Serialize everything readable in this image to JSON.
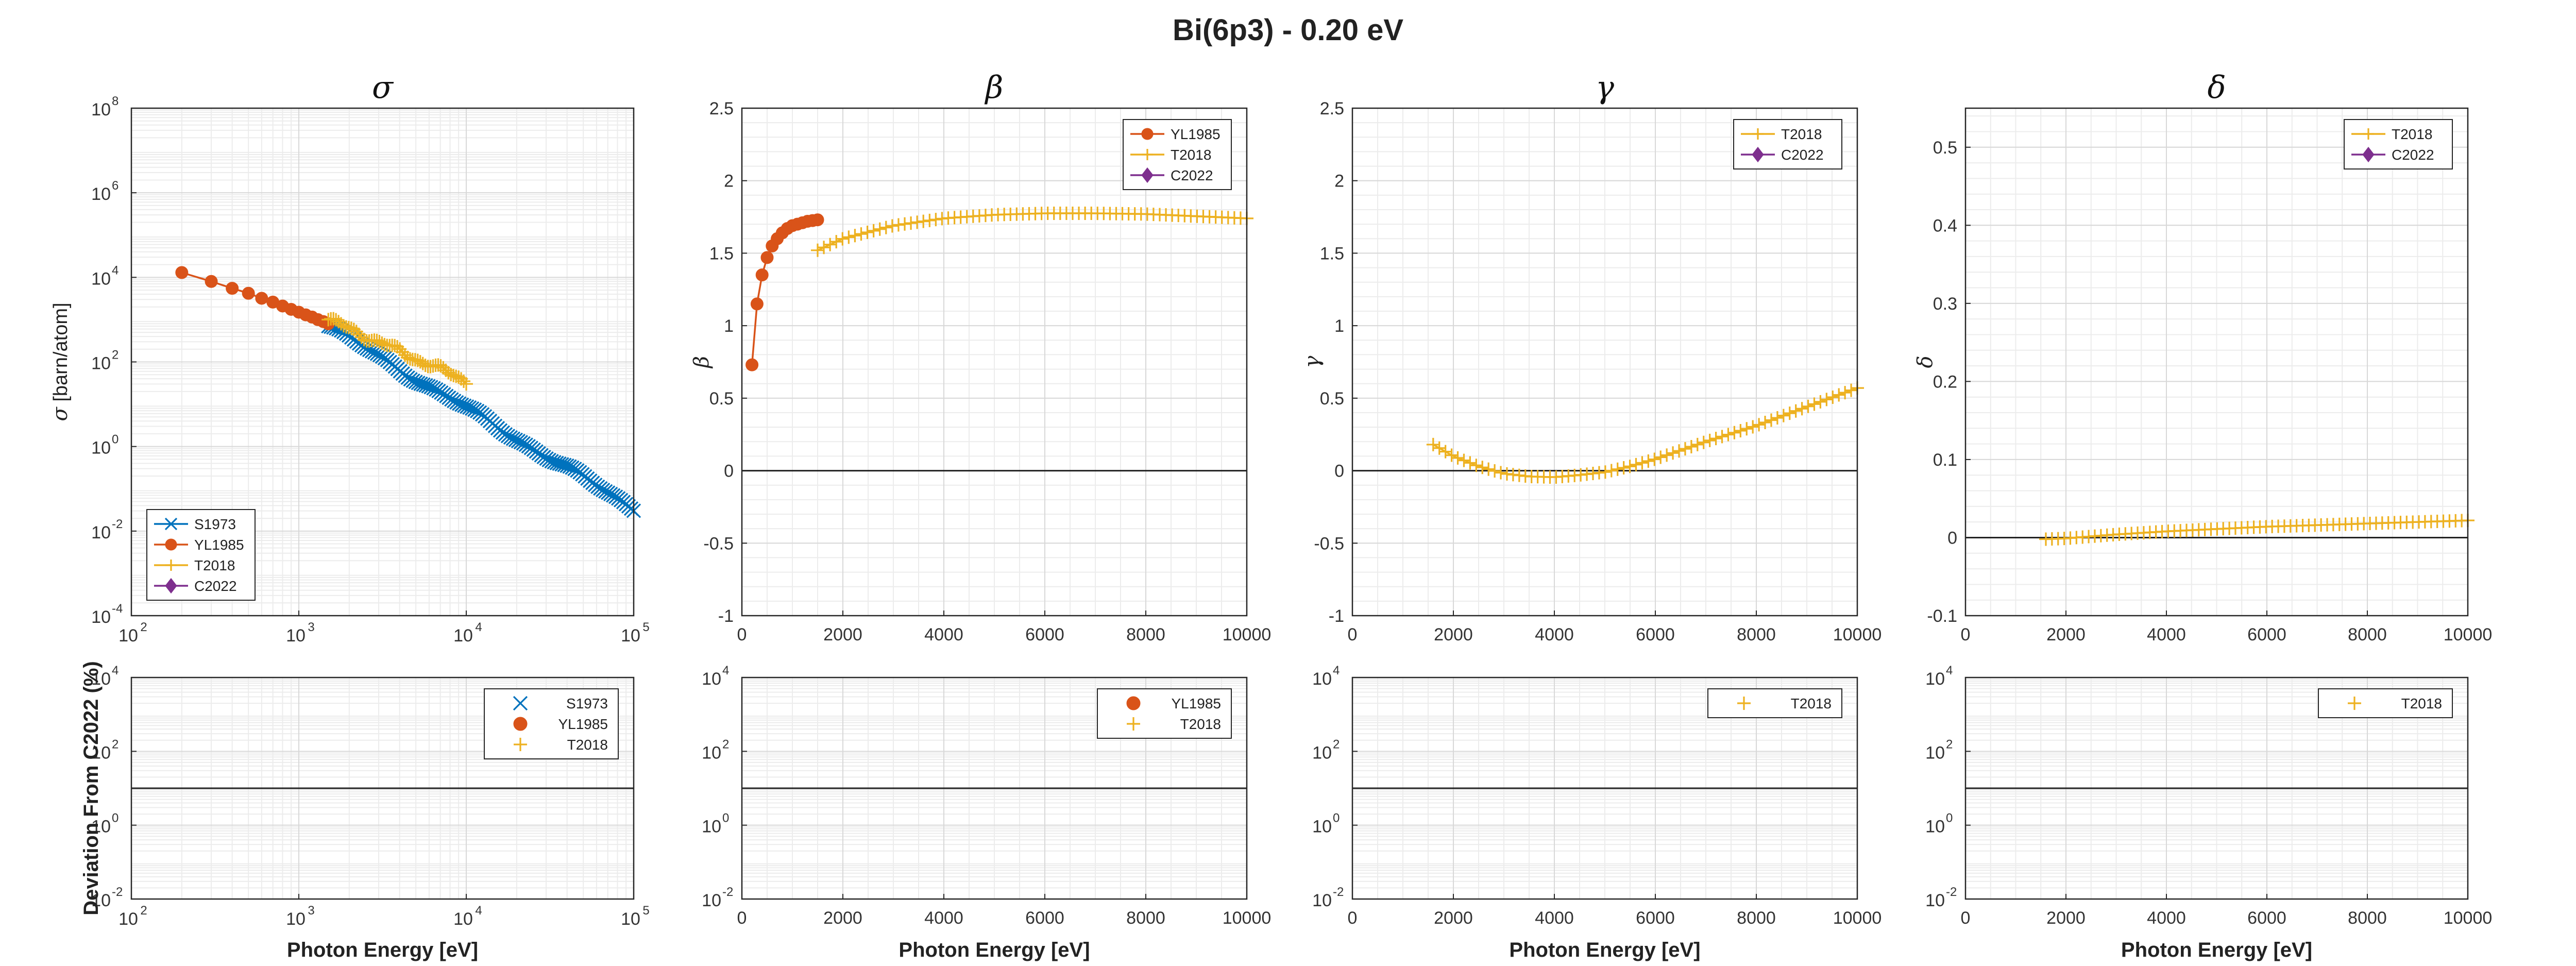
{
  "figure_title": "Bi(6p3) - 0.20 eV",
  "colors": {
    "S1973": "#0072BD",
    "YL1985": "#D95319",
    "T2018": "#EDB120",
    "C2022": "#7E2F8E"
  },
  "chart_data": [
    {
      "id": "sigma",
      "type": "line",
      "title": "σ",
      "ylabel_symbol": "σ",
      "ylabel_rest": " [barn/atom]",
      "xscale": "log",
      "yscale": "log",
      "xlim": [
        100,
        100000
      ],
      "ylim": [
        0.0001,
        100000000
      ],
      "xticks": [
        100,
        1000,
        10000,
        100000
      ],
      "yticks": [
        0.0001,
        0.01,
        1,
        100,
        10000,
        1000000,
        100000000
      ],
      "grid": true,
      "legend": "bottom-left",
      "legend_entries": [
        "S1973",
        "YL1985",
        "T2018",
        "C2022"
      ],
      "series": [
        {
          "name": "S1973",
          "marker": "x",
          "line": true,
          "x_range": [
            1500,
            100000
          ],
          "y_range": [
            700,
            0.035
          ]
        },
        {
          "name": "YL1985",
          "marker": "circle",
          "line": true,
          "x": [
            200,
            300,
            400,
            500,
            600,
            700,
            800,
            900,
            1000,
            1100,
            1200,
            1300,
            1400,
            1500
          ],
          "y": [
            13000,
            8000,
            5500,
            4200,
            3200,
            2600,
            2100,
            1750,
            1500,
            1300,
            1150,
            1000,
            900,
            800
          ]
        },
        {
          "name": "T2018",
          "marker": "plus",
          "line": true,
          "x_range": [
            1500,
            10000
          ],
          "y_range": [
            1000,
            35
          ]
        },
        {
          "name": "C2022",
          "marker": "diamond",
          "line": true,
          "x": [],
          "y": []
        }
      ]
    },
    {
      "id": "beta",
      "type": "line",
      "title": "β",
      "ylabel_symbol": "β",
      "xscale": "linear",
      "yscale": "linear",
      "xlim": [
        0,
        10000
      ],
      "ylim": [
        -1,
        2.5
      ],
      "xticks": [
        0,
        2000,
        4000,
        6000,
        8000,
        10000
      ],
      "yticks": [
        -1,
        -0.5,
        0,
        0.5,
        1,
        1.5,
        2,
        2.5
      ],
      "grid": true,
      "legend": "top-right",
      "legend_entries": [
        "YL1985",
        "T2018",
        "C2022"
      ],
      "series": [
        {
          "name": "YL1985",
          "marker": "circle",
          "line": true,
          "x": [
            200,
            300,
            400,
            500,
            600,
            700,
            800,
            900,
            1000,
            1100,
            1200,
            1300,
            1400,
            1500
          ],
          "y": [
            0.73,
            1.15,
            1.35,
            1.47,
            1.55,
            1.6,
            1.64,
            1.67,
            1.69,
            1.7,
            1.71,
            1.72,
            1.725,
            1.73
          ]
        },
        {
          "name": "T2018",
          "marker": "plus",
          "line": true,
          "x": [
            1500,
            2000,
            3000,
            4000,
            5000,
            6000,
            7000,
            8000,
            9000,
            10000
          ],
          "y": [
            1.52,
            1.6,
            1.69,
            1.74,
            1.765,
            1.775,
            1.775,
            1.77,
            1.755,
            1.74
          ]
        },
        {
          "name": "C2022",
          "marker": "diamond",
          "line": true,
          "x": [],
          "y": []
        }
      ]
    },
    {
      "id": "gamma",
      "type": "line",
      "title": "γ",
      "ylabel_symbol": "γ",
      "xscale": "linear",
      "yscale": "linear",
      "xlim": [
        0,
        10000
      ],
      "ylim": [
        -1,
        2.5
      ],
      "xticks": [
        0,
        2000,
        4000,
        6000,
        8000,
        10000
      ],
      "yticks": [
        -1,
        -0.5,
        0,
        0.5,
        1,
        1.5,
        2,
        2.5
      ],
      "grid": true,
      "legend": "top-right",
      "legend_entries": [
        "T2018",
        "C2022"
      ],
      "series": [
        {
          "name": "T2018",
          "marker": "plus",
          "line": true,
          "x": [
            1600,
            2000,
            2500,
            3000,
            3500,
            4000,
            4500,
            5000,
            5500,
            6000,
            7000,
            8000,
            9000,
            10000
          ],
          "y": [
            0.18,
            0.1,
            0.03,
            -0.02,
            -0.04,
            -0.045,
            -0.03,
            -0.01,
            0.03,
            0.08,
            0.2,
            0.31,
            0.44,
            0.57
          ]
        },
        {
          "name": "C2022",
          "marker": "diamond",
          "line": true,
          "x": [],
          "y": []
        }
      ]
    },
    {
      "id": "delta",
      "type": "line",
      "title": "δ",
      "ylabel_symbol": "δ",
      "xscale": "linear",
      "yscale": "linear",
      "xlim": [
        0,
        10000
      ],
      "ylim": [
        -0.1,
        0.55
      ],
      "xticks": [
        0,
        2000,
        4000,
        6000,
        8000,
        10000
      ],
      "yticks": [
        -0.1,
        0,
        0.1,
        0.2,
        0.3,
        0.4,
        0.5
      ],
      "grid": true,
      "legend": "top-right",
      "legend_entries": [
        "T2018",
        "C2022"
      ],
      "series": [
        {
          "name": "T2018",
          "marker": "plus",
          "line": true,
          "x": [
            1600,
            2000,
            3000,
            4000,
            5000,
            6000,
            7000,
            8000,
            9000,
            10000
          ],
          "y": [
            -0.002,
            -0.001,
            0.004,
            0.008,
            0.011,
            0.014,
            0.016,
            0.018,
            0.02,
            0.022
          ]
        },
        {
          "name": "C2022",
          "marker": "diamond",
          "line": true,
          "x": [],
          "y": []
        }
      ]
    },
    {
      "id": "dev_sigma",
      "type": "scatter",
      "ylabel": "Deviation From C2022 (%)",
      "xlabel": "Photon Energy [eV]",
      "xscale": "log",
      "yscale": "log",
      "xlim": [
        100,
        100000
      ],
      "ylim": [
        0.01,
        10000
      ],
      "xticks": [
        100,
        1000,
        10000,
        100000
      ],
      "yticks": [
        0.01,
        1,
        100,
        10000
      ],
      "reference_line": 10,
      "grid": true,
      "legend": "top-right",
      "legend_entries": [
        "S1973",
        "YL1985",
        "T2018"
      ],
      "series": [
        {
          "name": "S1973",
          "marker": "x",
          "x": [],
          "y": []
        },
        {
          "name": "YL1985",
          "marker": "circle",
          "x": [],
          "y": []
        },
        {
          "name": "T2018",
          "marker": "plus",
          "x": [],
          "y": []
        }
      ]
    },
    {
      "id": "dev_beta",
      "type": "scatter",
      "xlabel": "Photon Energy [eV]",
      "xscale": "linear",
      "yscale": "log",
      "xlim": [
        0,
        10000
      ],
      "ylim": [
        0.01,
        10000
      ],
      "xticks": [
        0,
        2000,
        4000,
        6000,
        8000,
        10000
      ],
      "yticks": [
        0.01,
        1,
        100,
        10000
      ],
      "reference_line": 10,
      "grid": true,
      "legend": "top-right",
      "legend_entries": [
        "YL1985",
        "T2018"
      ],
      "series": [
        {
          "name": "YL1985",
          "marker": "circle",
          "x": [],
          "y": []
        },
        {
          "name": "T2018",
          "marker": "plus",
          "x": [],
          "y": []
        }
      ]
    },
    {
      "id": "dev_gamma",
      "type": "scatter",
      "xlabel": "Photon Energy [eV]",
      "xscale": "linear",
      "yscale": "log",
      "xlim": [
        0,
        10000
      ],
      "ylim": [
        0.01,
        10000
      ],
      "xticks": [
        0,
        2000,
        4000,
        6000,
        8000,
        10000
      ],
      "yticks": [
        0.01,
        1,
        100,
        10000
      ],
      "reference_line": 10,
      "grid": true,
      "legend": "top-right",
      "legend_entries": [
        "T2018"
      ],
      "series": [
        {
          "name": "T2018",
          "marker": "plus",
          "x": [],
          "y": []
        }
      ]
    },
    {
      "id": "dev_delta",
      "type": "scatter",
      "xlabel": "Photon Energy [eV]",
      "xscale": "linear",
      "yscale": "log",
      "xlim": [
        0,
        10000
      ],
      "ylim": [
        0.01,
        10000
      ],
      "xticks": [
        0,
        2000,
        4000,
        6000,
        8000,
        10000
      ],
      "yticks": [
        0.01,
        1,
        100,
        10000
      ],
      "reference_line": 10,
      "grid": true,
      "legend": "top-right",
      "legend_entries": [
        "T2018"
      ],
      "series": [
        {
          "name": "T2018",
          "marker": "plus",
          "x": [],
          "y": []
        }
      ]
    }
  ]
}
